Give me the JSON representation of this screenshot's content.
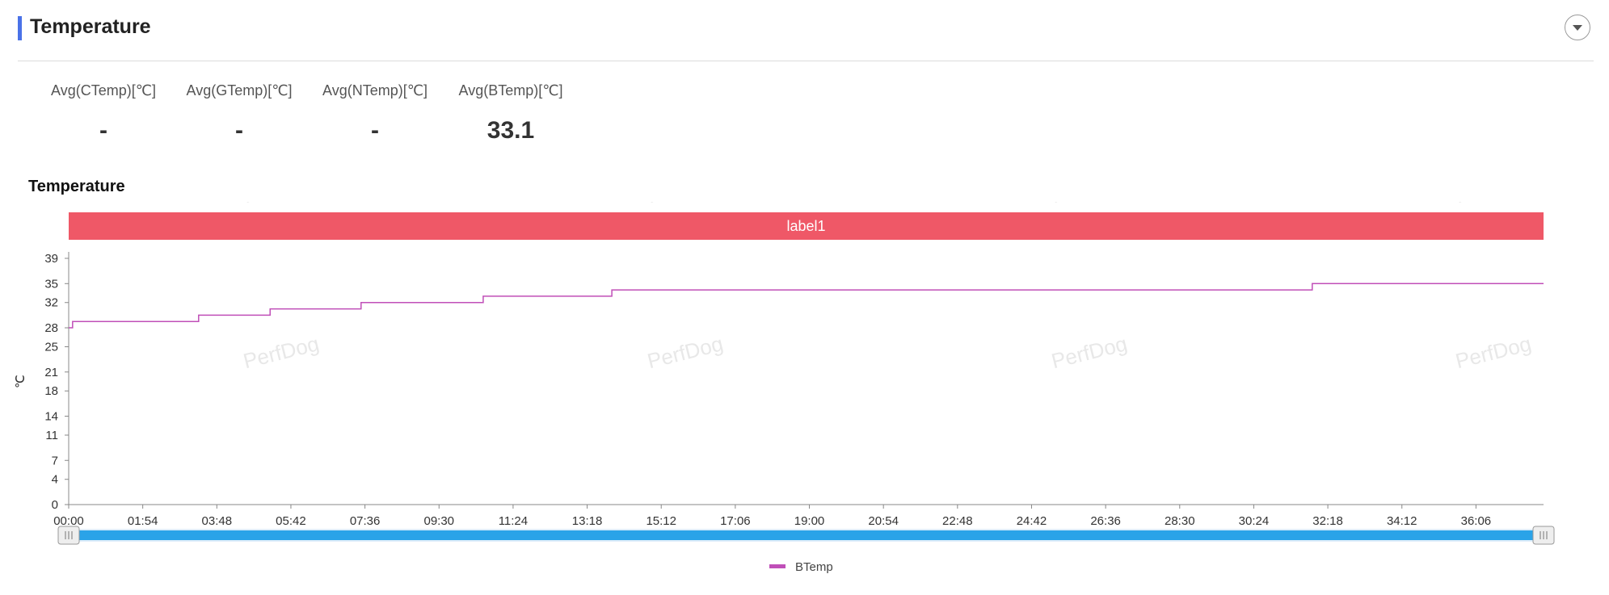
{
  "header": {
    "title": "Temperature",
    "accent_color": "#4a72e8",
    "collapse_icon": "chevron-down-icon"
  },
  "stats": [
    {
      "label": "Avg(CTemp)[℃]",
      "value": "-"
    },
    {
      "label": "Avg(GTemp)[℃]",
      "value": "-"
    },
    {
      "label": "Avg(NTemp)[℃]",
      "value": "-"
    },
    {
      "label": "Avg(BTemp)[℃]",
      "value": "33.1"
    }
  ],
  "watermark": "PerfDog",
  "chart_data": {
    "type": "line",
    "title": "Temperature",
    "ylabel": "℃",
    "xlabel": "",
    "ylim": [
      0,
      39
    ],
    "y_ticks": [
      "0",
      "4",
      "7",
      "11",
      "14",
      "18",
      "21",
      "25",
      "28",
      "32",
      "35",
      "39"
    ],
    "x_ticks": [
      "00:00",
      "01:54",
      "03:48",
      "05:42",
      "07:36",
      "09:30",
      "11:24",
      "13:18",
      "15:12",
      "17:06",
      "19:00",
      "20:54",
      "22:48",
      "24:42",
      "26:36",
      "28:30",
      "30:24",
      "32:18",
      "34:12",
      "36:06"
    ],
    "x_range": [
      "00:00",
      "37:50"
    ],
    "label_band": {
      "text": "label1",
      "color": "#ef5867"
    },
    "series": [
      {
        "name": "BTemp",
        "color": "#c04fb8",
        "step": true,
        "points": [
          [
            "00:00",
            28
          ],
          [
            "00:06",
            29
          ],
          [
            "03:20",
            30
          ],
          [
            "05:10",
            31
          ],
          [
            "07:30",
            32
          ],
          [
            "10:38",
            33
          ],
          [
            "13:56",
            34
          ],
          [
            "31:54",
            35
          ],
          [
            "37:50",
            35
          ]
        ]
      }
    ],
    "legend_position": "bottom-center",
    "zoom_slider": {
      "start": "00:00",
      "end": "37:50",
      "color": "#2aa3e8"
    },
    "grid": false
  }
}
